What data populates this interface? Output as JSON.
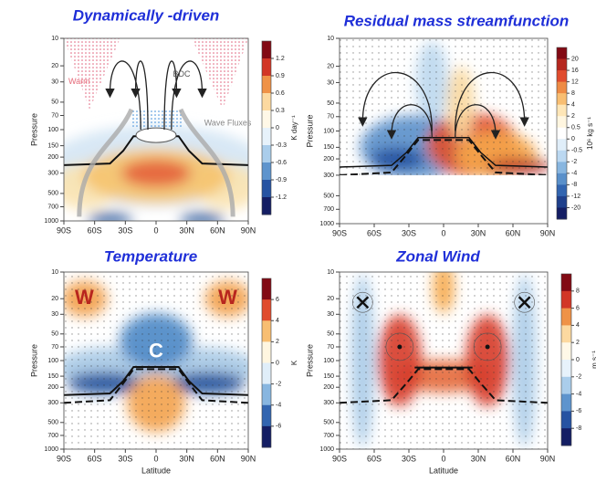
{
  "chart_data": [
    {
      "type": "contour",
      "title": "Dynamically -driven",
      "ylabel": "Pressure",
      "xlim": [
        -90,
        90
      ],
      "xticks": [
        {
          "value": -90,
          "label": "90S"
        },
        {
          "value": -60,
          "label": "60S"
        },
        {
          "value": -30,
          "label": "30S"
        },
        0,
        {
          "value": 30,
          "label": "30N"
        },
        {
          "value": 60,
          "label": "60N"
        },
        {
          "value": 90,
          "label": "90N"
        }
      ],
      "ylim": [
        1000,
        10
      ],
      "yscale": "log",
      "yticks": [
        10,
        20,
        30,
        50,
        70,
        100,
        150,
        200,
        300,
        500,
        700,
        1000
      ],
      "colorbar": {
        "label": "K day⁻¹",
        "ticks": [
          1.2,
          0.9,
          0.6,
          0.3,
          0,
          -0.3,
          -0.6,
          -0.9,
          -1.2
        ]
      },
      "annotations": [
        "Warm",
        "BDC",
        "Wave Fluxes"
      ]
    },
    {
      "type": "contour",
      "title": "Residual mass streamfunction",
      "ylabel": "Pressure",
      "xlim": [
        -90,
        90
      ],
      "xticks": [
        {
          "value": -90,
          "label": "90S"
        },
        {
          "value": -60,
          "label": "60S"
        },
        {
          "value": -30,
          "label": "30S"
        },
        0,
        {
          "value": 30,
          "label": "30N"
        },
        {
          "value": 60,
          "label": "60N"
        },
        {
          "value": 90,
          "label": "90N"
        }
      ],
      "ylim": [
        1000,
        10
      ],
      "yscale": "log",
      "yticks": [
        10,
        20,
        30,
        50,
        70,
        100,
        150,
        200,
        300,
        500,
        700,
        1000
      ],
      "colorbar": {
        "label": "10⁶ kg s⁻¹",
        "ticks": [
          20,
          16,
          12,
          8,
          4,
          2,
          0.5,
          0,
          -0.5,
          -2,
          -4,
          -8,
          -12,
          -20
        ]
      },
      "annotations": []
    },
    {
      "type": "contour",
      "title": "Temperature",
      "ylabel": "Pressure",
      "xlabel": "Latitude",
      "xlim": [
        -90,
        90
      ],
      "xticks": [
        {
          "value": -90,
          "label": "90S"
        },
        {
          "value": -60,
          "label": "60S"
        },
        {
          "value": -30,
          "label": "30S"
        },
        0,
        {
          "value": 30,
          "label": "30N"
        },
        {
          "value": 60,
          "label": "60N"
        },
        {
          "value": 90,
          "label": "90N"
        }
      ],
      "ylim": [
        1000,
        10
      ],
      "yscale": "log",
      "yticks": [
        10,
        20,
        30,
        50,
        70,
        100,
        150,
        200,
        300,
        500,
        700,
        1000
      ],
      "colorbar": {
        "label": "K",
        "ticks": [
          6,
          4,
          2,
          0,
          -2,
          -4,
          -6
        ]
      },
      "annotations": [
        "W",
        "W",
        "C"
      ]
    },
    {
      "type": "contour",
      "title": "Zonal Wind",
      "ylabel": "Pressure",
      "xlabel": "Latitude",
      "xlim": [
        -90,
        90
      ],
      "xticks": [
        {
          "value": -90,
          "label": "90S"
        },
        {
          "value": -60,
          "label": "60S"
        },
        {
          "value": -30,
          "label": "30S"
        },
        0,
        {
          "value": 30,
          "label": "30N"
        },
        {
          "value": 60,
          "label": "60N"
        },
        {
          "value": 90,
          "label": "90N"
        }
      ],
      "ylim": [
        1000,
        10
      ],
      "yscale": "log",
      "yticks": [
        10,
        20,
        30,
        50,
        70,
        100,
        150,
        200,
        300,
        500,
        700,
        1000
      ],
      "colorbar": {
        "label": "m s⁻¹",
        "ticks": [
          8,
          6,
          4,
          2,
          0,
          -2,
          -4,
          -6,
          -8
        ]
      },
      "annotations": []
    }
  ]
}
